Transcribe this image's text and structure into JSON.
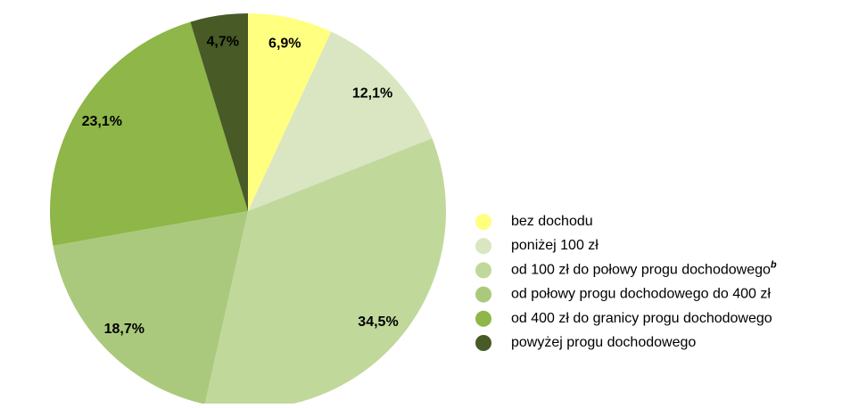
{
  "chart_data": {
    "type": "pie",
    "categories": [
      "bez dochodu",
      "poniżej 100 zł",
      "od 100 zł do połowy progu dochodowego",
      "od połowy progu dochodowego do 400 zł",
      "od 400 zł do granicy progu dochodowego",
      "powyżej progu dochodowego"
    ],
    "category_notes": {
      "2": "b"
    },
    "values": [
      6.9,
      12.1,
      34.5,
      18.7,
      23.1,
      4.7
    ],
    "value_labels": [
      "6,9%",
      "12,1%",
      "34,5%",
      "18,7%",
      "23,1%",
      "4,7%"
    ],
    "colors": [
      "#ffff80",
      "#d9e6c1",
      "#c1d89b",
      "#abc97c",
      "#8eb648",
      "#485a26"
    ],
    "legend": "right"
  }
}
